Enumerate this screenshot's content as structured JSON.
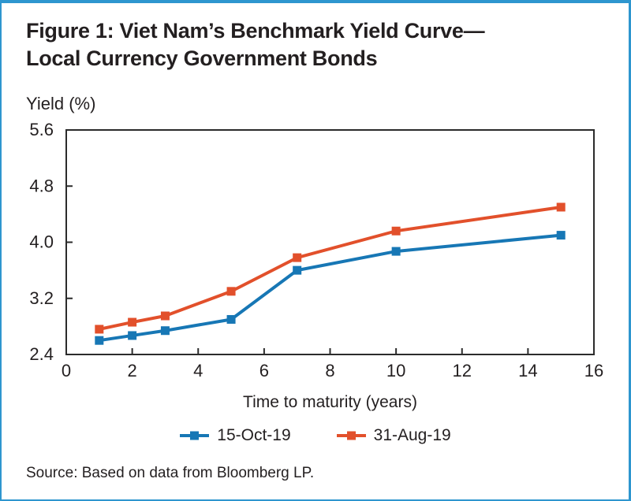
{
  "figure": {
    "title_line1": "Figure 1: Viet Nam’s Benchmark Yield Curve—",
    "title_line2": "Local Currency Government Bonds",
    "source": "Source: Based on data from Bloomberg LP."
  },
  "colors": {
    "series_oct_blue": "#1777B5",
    "series_aug_red": "#E2502B",
    "axis": "#2B2B2B",
    "text": "#231F20",
    "frame_border": "#2E96CF"
  },
  "chart_data": {
    "type": "line",
    "title": "Figure 1: Viet Nam’s Benchmark Yield Curve—Local Currency Government Bonds",
    "xlabel": "Time to maturity (years)",
    "ylabel": "Yield (%)",
    "x": [
      1,
      2,
      3,
      5,
      7,
      10,
      15
    ],
    "series": [
      {
        "name": "15-Oct-19",
        "color": "#1777B5",
        "marker": "square",
        "values": [
          2.6,
          2.67,
          2.74,
          2.9,
          3.6,
          3.87,
          4.1
        ]
      },
      {
        "name": "31-Aug-19",
        "color": "#E2502B",
        "marker": "square",
        "values": [
          2.76,
          2.86,
          2.95,
          3.3,
          3.78,
          4.16,
          4.5
        ]
      }
    ],
    "xlim": [
      0,
      16
    ],
    "ylim": [
      2.4,
      5.6
    ],
    "x_ticks": [
      0,
      2,
      4,
      6,
      8,
      10,
      12,
      14,
      16
    ],
    "y_ticks": [
      2.4,
      3.2,
      4.0,
      4.8,
      5.6
    ],
    "grid": false,
    "legend_position": "bottom"
  }
}
